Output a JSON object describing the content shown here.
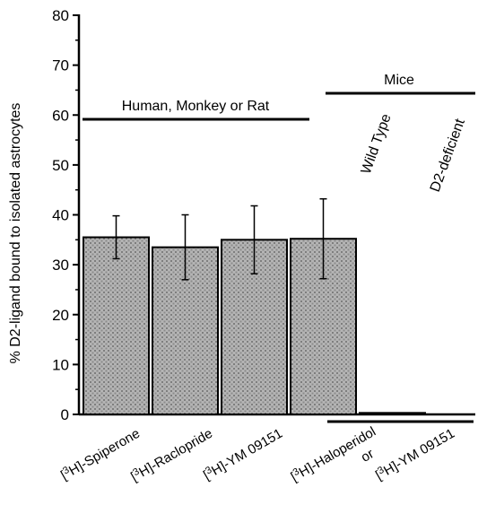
{
  "chart_data": {
    "type": "bar",
    "ylabel": "% D2-ligand bound to isolated astrocytes",
    "ylim": [
      0,
      80
    ],
    "yticks": [
      0,
      10,
      20,
      30,
      40,
      50,
      60,
      70,
      80
    ],
    "categories": [
      {
        "prefix": "[",
        "sup": "3",
        "rest": "H]-Spiperone"
      },
      {
        "prefix": "[",
        "sup": "3",
        "rest": "H]-Raclopride"
      },
      {
        "prefix": "[",
        "sup": "3",
        "rest": "H]-YM 09151"
      },
      {
        "prefix": "[",
        "sup": "3",
        "rest": "H]-Haloperidol"
      },
      {
        "prefix": "[",
        "sup": "3",
        "rest": "H]-YM 09151"
      }
    ],
    "mouse_ligand_connector": "or",
    "values": [
      35.5,
      33.5,
      35.0,
      35.2,
      0.3
    ],
    "errors": [
      4.3,
      6.5,
      6.8,
      8.0,
      0
    ],
    "groups": {
      "species_label": "Human, Monkey or Rat",
      "mice_label": "Mice",
      "wild_type_label": "Wild Type",
      "d2_deficient_label": "D2-deficient"
    },
    "colors": {
      "bar_fill": "#a8a8a8",
      "bar_pattern_dot": "#8a8a8a",
      "bar_outline": "#000000"
    }
  }
}
